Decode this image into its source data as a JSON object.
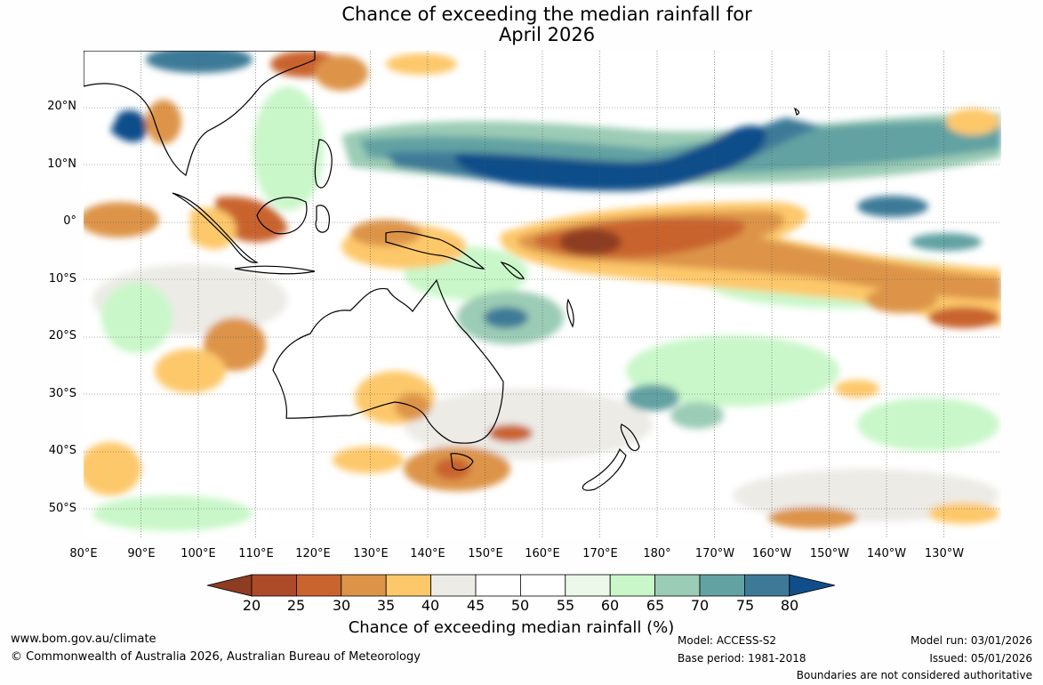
{
  "title": {
    "line1": "Chance of exceeding the median rainfall for",
    "line2": "April 2026"
  },
  "map": {
    "latitude_labels": [
      "20°N",
      "10°N",
      "0°",
      "10°S",
      "20°S",
      "30°S",
      "40°S",
      "50°S"
    ],
    "longitude_labels": [
      "80°E",
      "90°E",
      "100°E",
      "110°E",
      "120°E",
      "130°E",
      "140°E",
      "150°E",
      "160°E",
      "170°E",
      "180°",
      "170°W",
      "160°W",
      "150°W",
      "140°W",
      "130°W"
    ],
    "extent": {
      "lon_min": 80,
      "lon_max": 240,
      "lat_min": -55,
      "lat_max": 30
    }
  },
  "colorbar": {
    "title": "Chance of exceeding median rainfall (%)",
    "ticks": [
      "20",
      "25",
      "30",
      "35",
      "40",
      "45",
      "50",
      "55",
      "60",
      "65",
      "70",
      "75",
      "80"
    ],
    "colors": [
      "#8e3c22",
      "#ad4a27",
      "#c9642f",
      "#dd9448",
      "#fdc86a",
      "#ecebe6",
      "#ffffff",
      "#ffffff",
      "#ecf8ea",
      "#c9f7c9",
      "#9bccb5",
      "#62a2a3",
      "#3e7a98",
      "#0f4e8a"
    ]
  },
  "footer": {
    "url": "www.bom.gov.au/climate",
    "copyright": "© Commonwealth of Australia 2026, Australian Bureau of Meteorology",
    "model": "Model: ACCESS-S2",
    "base_period": "Base period: 1981-2018",
    "model_run": "Model run: 03/01/2026",
    "issued": "Issued: 05/01/2026",
    "disclaimer": "Boundaries are not considered authoritative"
  }
}
